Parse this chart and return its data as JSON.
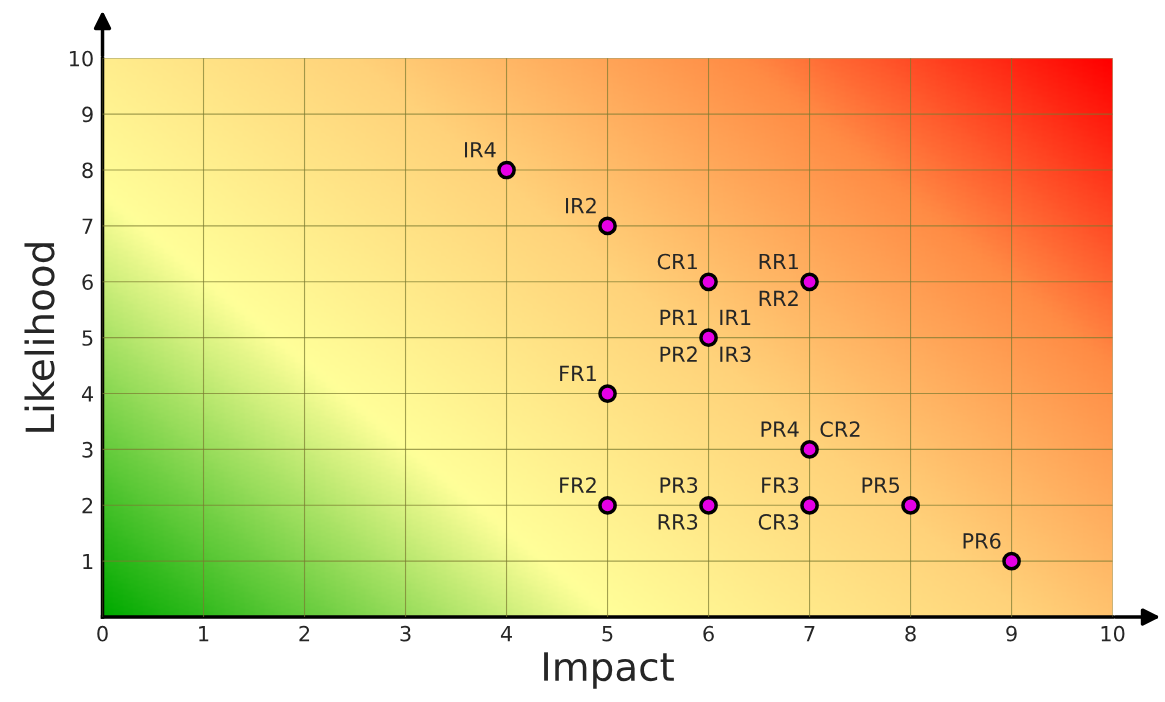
{
  "chart_data": {
    "type": "scatter",
    "xlabel": "Impact",
    "ylabel": "Likelihood",
    "x": [
      4,
      5,
      6,
      7,
      6,
      5,
      7,
      5,
      6,
      7,
      8,
      9
    ],
    "series": [
      {
        "color": "#e600e6",
        "values": [
          8,
          7,
          6,
          6,
          5,
          4,
          3,
          2,
          2,
          2,
          2,
          1
        ]
      }
    ],
    "xlim": [
      0,
      10
    ],
    "ylim": [
      0,
      10
    ],
    "xticks": [
      0,
      1,
      2,
      3,
      4,
      5,
      6,
      7,
      8,
      9,
      10
    ],
    "yticks": [
      1,
      2,
      3,
      4,
      5,
      6,
      7,
      8,
      9,
      10
    ],
    "grid": true,
    "marker": "circle",
    "legend": false,
    "annotations": [
      {
        "text": "IR4",
        "x": 4,
        "y": 8
      },
      {
        "text": "IR2",
        "x": 5,
        "y": 7
      },
      {
        "text": "CR1",
        "x": 6,
        "y": 6
      },
      {
        "text": "RR1",
        "x": 7,
        "y": 6
      },
      {
        "text": "RR2",
        "x": 7,
        "y": 6
      },
      {
        "text": "PR1",
        "x": 6,
        "y": 5
      },
      {
        "text": "IR1",
        "x": 6,
        "y": 5
      },
      {
        "text": "PR2",
        "x": 6,
        "y": 5
      },
      {
        "text": "IR3",
        "x": 6,
        "y": 5
      },
      {
        "text": "FR1",
        "x": 5,
        "y": 4
      },
      {
        "text": "PR4",
        "x": 7,
        "y": 3
      },
      {
        "text": "CR2",
        "x": 7,
        "y": 3
      },
      {
        "text": "FR2",
        "x": 5,
        "y": 2
      },
      {
        "text": "PR3",
        "x": 6,
        "y": 2
      },
      {
        "text": "RR3",
        "x": 6,
        "y": 2
      },
      {
        "text": "FR3",
        "x": 7,
        "y": 2
      },
      {
        "text": "CR3",
        "x": 7,
        "y": 2
      },
      {
        "text": "PR5",
        "x": 8,
        "y": 2
      },
      {
        "text": "PR6",
        "x": 9,
        "y": 1
      }
    ]
  }
}
